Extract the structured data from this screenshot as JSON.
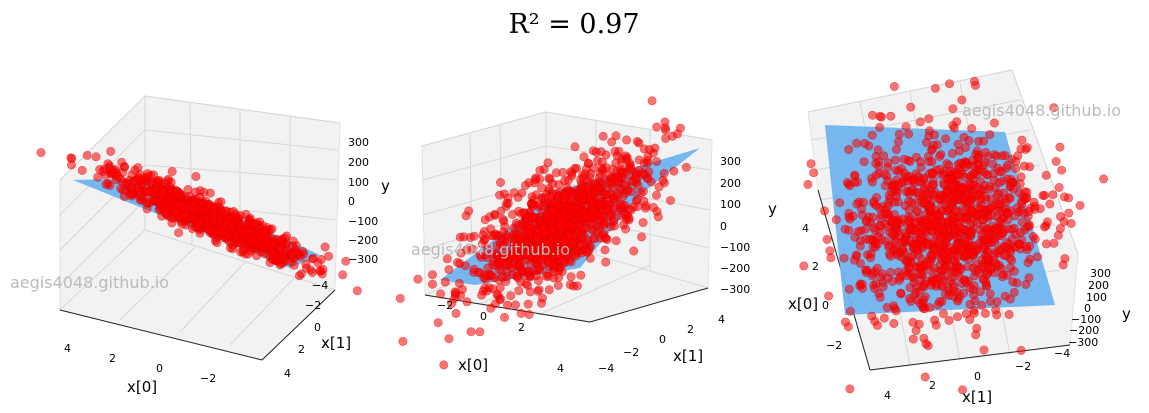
{
  "title": "R² = 0.97",
  "watermark": "aegis4048.github.io",
  "colors": {
    "plane": "#6fb3ee",
    "points": "#ff0000",
    "pane": "#f2f2f2",
    "grid": "#d6d6d6"
  },
  "chart_data": [
    {
      "type": "scatter",
      "view": "left",
      "series": [
        {
          "kind": "points",
          "color": "#ff0000"
        },
        {
          "kind": "plane",
          "color": "#6fb3ee"
        }
      ],
      "xlabel": "x[0]",
      "ylabel": "x[1]",
      "zlabel": "y",
      "xticks": [
        "4",
        "2",
        "0",
        "−2"
      ],
      "yticks": [
        "−4",
        "−2",
        "0",
        "2",
        "4"
      ],
      "zticks": [
        "300",
        "200",
        "100",
        "0",
        "−100",
        "−200",
        "−300"
      ],
      "zlim": [
        -300,
        300
      ]
    },
    {
      "type": "scatter",
      "view": "middle",
      "series": [
        {
          "kind": "points",
          "color": "#ff0000"
        },
        {
          "kind": "plane",
          "color": "#6fb3ee"
        }
      ],
      "xlabel": "x[0]",
      "ylabel": "x[1]",
      "zlabel": "y",
      "xticks": [
        "−2",
        "0",
        "2",
        "4"
      ],
      "yticks": [
        "4",
        "2",
        "0",
        "−2",
        "−4"
      ],
      "zticks": [
        "300",
        "200",
        "100",
        "0",
        "−100",
        "−200",
        "−300"
      ],
      "zlim": [
        -300,
        300
      ]
    },
    {
      "type": "scatter",
      "view": "right",
      "series": [
        {
          "kind": "points",
          "color": "#ff0000"
        },
        {
          "kind": "plane",
          "color": "#6fb3ee"
        }
      ],
      "xlabel": "x[0]",
      "ylabel": "x[1]",
      "zlabel": "y",
      "xticks": [
        "4",
        "2",
        "0",
        "−2"
      ],
      "yticks": [
        "4",
        "2",
        "0",
        "−2",
        "−4"
      ],
      "zticks": [
        "300",
        "200",
        "100",
        "0",
        "−100",
        "−200",
        "−300"
      ],
      "zlim": [
        -300,
        300
      ]
    }
  ]
}
